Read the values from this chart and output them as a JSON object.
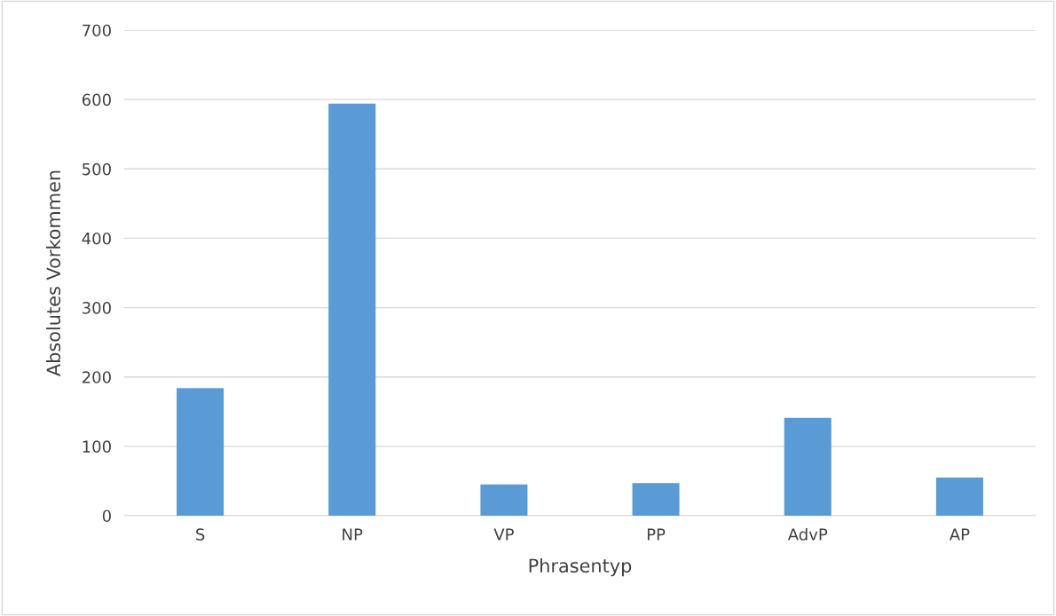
{
  "chart_data": {
    "type": "bar",
    "xlabel": "Phrasentyp",
    "ylabel": "Absolutes Vorkommen",
    "categories": [
      "S",
      "NP",
      "VP",
      "PP",
      "AdvP",
      "AP"
    ],
    "values": [
      184,
      594,
      45,
      47,
      141,
      55
    ],
    "color": "#5b9bd5",
    "ylim": [
      0,
      700
    ],
    "yticks": [
      0,
      100,
      200,
      300,
      400,
      500,
      600,
      700
    ],
    "grid": "y",
    "legend": false
  }
}
